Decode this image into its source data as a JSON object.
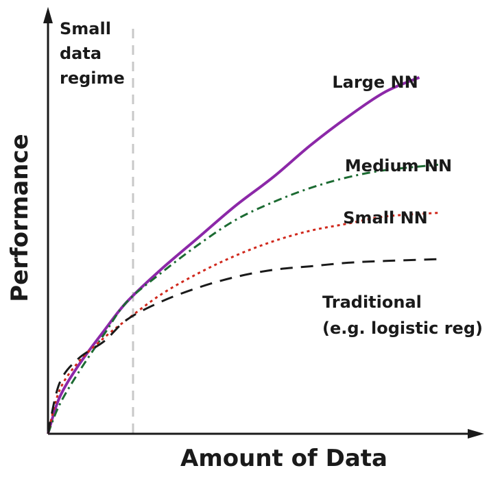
{
  "chart_data": {
    "type": "line",
    "xlabel": "Amount of Data",
    "ylabel": "Performance",
    "grid": false,
    "annotation": {
      "lines": [
        "Small",
        "data",
        "regime"
      ]
    },
    "series": [
      {
        "name": "Large NN",
        "label_lines": [
          "Large NN"
        ],
        "color": "#8c28a8",
        "style": "solid",
        "x": [
          0,
          0.03,
          0.08,
          0.15,
          0.21,
          0.3,
          0.4,
          0.5,
          0.6,
          0.7,
          0.8,
          0.9,
          0.99
        ],
        "y": [
          0,
          0.1,
          0.19,
          0.29,
          0.37,
          0.46,
          0.55,
          0.64,
          0.72,
          0.81,
          0.89,
          0.96,
          1.0
        ]
      },
      {
        "name": "Medium NN",
        "label_lines": [
          "Medium NN"
        ],
        "color": "#1c6b32",
        "style": "dashdot",
        "x": [
          0,
          0.03,
          0.08,
          0.15,
          0.21,
          0.3,
          0.4,
          0.5,
          0.6,
          0.7,
          0.8,
          0.9,
          1.04
        ],
        "y": [
          0,
          0.08,
          0.17,
          0.28,
          0.37,
          0.45,
          0.53,
          0.6,
          0.65,
          0.69,
          0.72,
          0.74,
          0.755
        ]
      },
      {
        "name": "Small NN",
        "label_lines": [
          "Small NN"
        ],
        "color": "#d0281c",
        "style": "dotted",
        "x": [
          0,
          0.03,
          0.08,
          0.15,
          0.21,
          0.3,
          0.4,
          0.5,
          0.6,
          0.7,
          0.8,
          0.9,
          1.04
        ],
        "y": [
          0,
          0.12,
          0.2,
          0.27,
          0.32,
          0.39,
          0.45,
          0.5,
          0.54,
          0.57,
          0.59,
          0.61,
          0.62
        ]
      },
      {
        "name": "Traditional (e.g. logistic reg)",
        "label_lines": [
          "Traditional",
          "(e.g. logistic reg)"
        ],
        "color": "#1a1a1a",
        "style": "dashed",
        "x": [
          0,
          0.03,
          0.08,
          0.15,
          0.21,
          0.3,
          0.4,
          0.5,
          0.6,
          0.7,
          0.8,
          0.9,
          1.04
        ],
        "y": [
          0,
          0.14,
          0.21,
          0.26,
          0.32,
          0.37,
          0.41,
          0.44,
          0.46,
          0.47,
          0.48,
          0.485,
          0.49
        ]
      }
    ]
  }
}
